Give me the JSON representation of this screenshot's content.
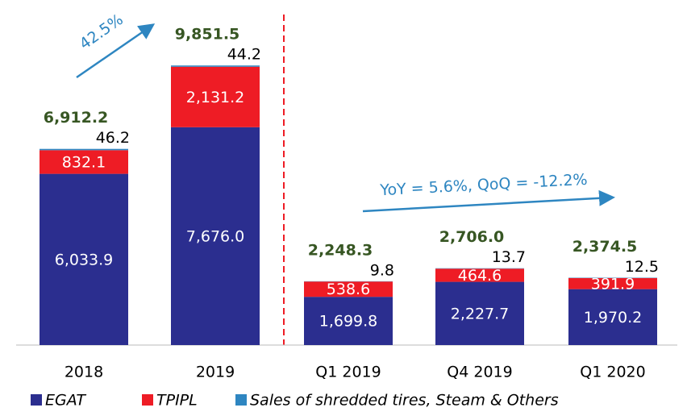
{
  "chart_data": {
    "type": "stacked_bar",
    "categories": [
      "2018",
      "2019",
      "Q1 2019",
      "Q4 2019",
      "Q1 2020"
    ],
    "series": [
      {
        "name": "EGAT",
        "color": "#2b2e8f",
        "values": [
          6033.9,
          7676.0,
          1699.8,
          2227.7,
          1970.2
        ],
        "value_labels": [
          "6,033.9",
          "7,676.0",
          "1,699.8",
          "2,227.7",
          "1,970.2"
        ]
      },
      {
        "name": "TPIPL",
        "color": "#ee1c25",
        "values": [
          832.1,
          2131.2,
          538.6,
          464.6,
          391.9
        ],
        "value_labels": [
          "832.1",
          "2,131.2",
          "538.6",
          "464.6",
          "391.9"
        ]
      },
      {
        "name": "Sales of shredded tires, Steam & Others",
        "color": "#2e86c1",
        "values": [
          46.2,
          44.2,
          9.8,
          13.7,
          12.5
        ]
      }
    ],
    "totals": {
      "color": "#375623",
      "values": [
        6912.2,
        9851.5,
        2248.3,
        2706.0,
        2374.5
      ],
      "value_labels": [
        "6,912.2",
        "9,851.5",
        "2,248.3",
        "2,706.0",
        "2,374.5"
      ]
    },
    "annotations": [
      "42.5%",
      "YoY = 5.6%, QoQ = -12.2%"
    ],
    "legend": "bottom"
  }
}
